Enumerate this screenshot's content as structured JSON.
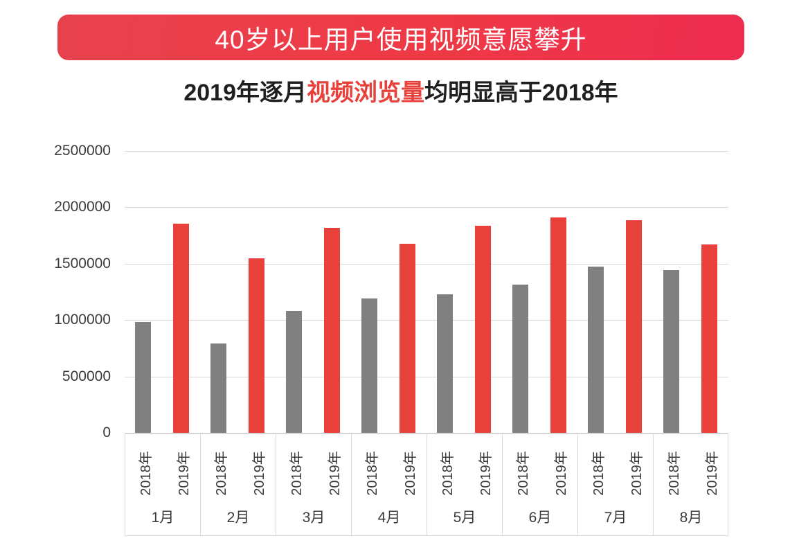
{
  "banner": {
    "title": "40岁以上用户使用视频意愿攀升",
    "bg_gradient_from": "#e8414e",
    "bg_gradient_to": "#ee2d51",
    "text_color": "#ffffff"
  },
  "subtitle": {
    "prefix": "2019年逐月",
    "highlight": "视频浏览量",
    "suffix": "均明显高于2018年",
    "highlight_color": "#e8413c",
    "text_color": "#1f1f1f"
  },
  "chart_data": {
    "type": "bar",
    "title": "",
    "categories": [
      "1月",
      "2月",
      "3月",
      "4月",
      "5月",
      "6月",
      "7月",
      "8月"
    ],
    "series": [
      {
        "name": "2018年",
        "color": "#808080",
        "values": [
          985000,
          790000,
          1080000,
          1190000,
          1230000,
          1315000,
          1475000,
          1445000
        ]
      },
      {
        "name": "2019年",
        "color": "#e8403b",
        "values": [
          1855000,
          1550000,
          1820000,
          1675000,
          1835000,
          1910000,
          1885000,
          1670000
        ]
      }
    ],
    "ylabel": "",
    "xlabel": "",
    "ylim": [
      0,
      2500000
    ],
    "yticks": [
      0,
      500000,
      1000000,
      1500000,
      2000000,
      2500000
    ],
    "grid": true,
    "legend": "none",
    "gridline_color": "#d9d9d9",
    "axis_text_color": "#3a3a3a",
    "category_label_rows": "year labels rotated 90deg under each bar, month label below"
  }
}
